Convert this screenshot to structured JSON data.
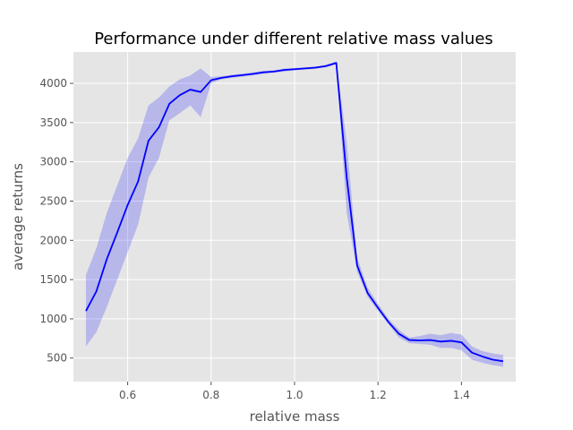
{
  "chart_data": {
    "type": "line",
    "title": "Performance under different relative mass values",
    "xlabel": "relative mass",
    "ylabel": "average returns",
    "xlim": [
      0.47,
      1.53
    ],
    "ylim": [
      200,
      4400
    ],
    "xticks": [
      0.6,
      0.8,
      1.0,
      1.2,
      1.4
    ],
    "xtick_labels": [
      "0.6",
      "0.8",
      "1.0",
      "1.2",
      "1.4"
    ],
    "yticks": [
      500,
      1000,
      1500,
      2000,
      2500,
      3000,
      3500,
      4000
    ],
    "ytick_labels": [
      "500",
      "1000",
      "1500",
      "2000",
      "2500",
      "3000",
      "3500",
      "4000"
    ],
    "grid": true,
    "background": "#e5e5e5",
    "line_color": "#0000ff",
    "band_color": "#0000ff",
    "series": [
      {
        "x": [
          0.5,
          0.525,
          0.55,
          0.575,
          0.6,
          0.625,
          0.65,
          0.675,
          0.7,
          0.725,
          0.75,
          0.775,
          0.8,
          0.825,
          0.85,
          0.875,
          0.9,
          0.925,
          0.95,
          0.975,
          1.0,
          1.025,
          1.05,
          1.075,
          1.1,
          1.125,
          1.15,
          1.175,
          1.2,
          1.225,
          1.25,
          1.275,
          1.3,
          1.325,
          1.35,
          1.375,
          1.4,
          1.425,
          1.45,
          1.475,
          1.5
        ],
        "y": [
          1100,
          1350,
          1760,
          2100,
          2450,
          2750,
          3270,
          3440,
          3740,
          3850,
          3920,
          3890,
          4040,
          4070,
          4090,
          4105,
          4120,
          4140,
          4150,
          4170,
          4180,
          4190,
          4200,
          4220,
          4260,
          2800,
          1680,
          1330,
          1140,
          960,
          810,
          730,
          725,
          730,
          710,
          720,
          700,
          570,
          520,
          480,
          460
        ],
        "lower": [
          650,
          830,
          1150,
          1500,
          1850,
          2200,
          2800,
          3050,
          3530,
          3620,
          3720,
          3570,
          4000,
          4050,
          4070,
          4085,
          4100,
          4120,
          4135,
          4150,
          4165,
          4175,
          4185,
          4205,
          4240,
          2350,
          1600,
          1280,
          1100,
          930,
          760,
          690,
          680,
          670,
          630,
          630,
          600,
          480,
          440,
          410,
          390
        ],
        "upper": [
          1560,
          1900,
          2350,
          2700,
          3050,
          3300,
          3720,
          3820,
          3960,
          4050,
          4100,
          4190,
          4080,
          4090,
          4110,
          4125,
          4140,
          4160,
          4165,
          4190,
          4195,
          4205,
          4215,
          4235,
          4280,
          3250,
          1780,
          1400,
          1190,
          1000,
          860,
          760,
          780,
          810,
          790,
          820,
          800,
          650,
          590,
          560,
          540
        ]
      }
    ]
  }
}
